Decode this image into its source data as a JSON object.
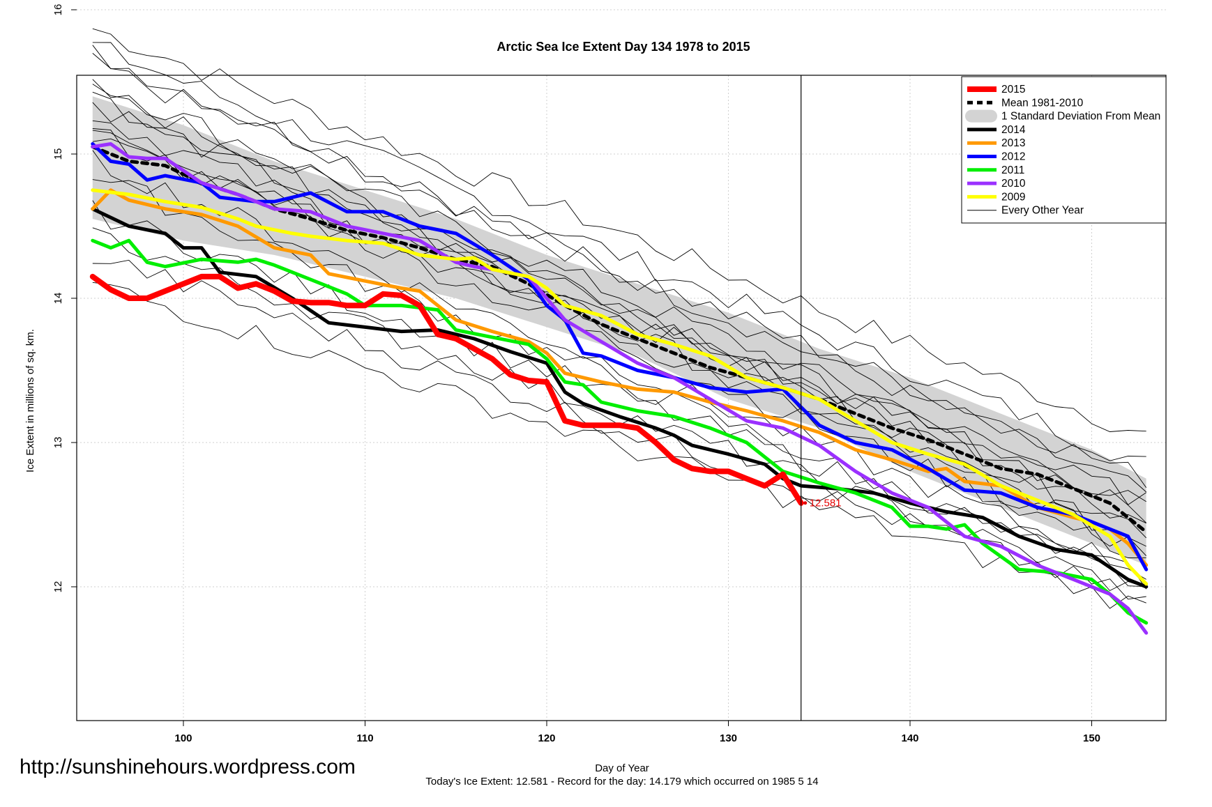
{
  "chart_data": {
    "type": "line",
    "title": "Arctic Sea Ice Extent Day 134 1978 to 2015",
    "xlabel": "Day of Year",
    "ylabel": "Ice Extent in millions of sq. km.",
    "xlim": [
      90,
      153
    ],
    "ylim": [
      11.55,
      16.0
    ],
    "xticks": [
      100,
      110,
      120,
      130,
      140,
      150
    ],
    "yticks": [
      12,
      13,
      14,
      15,
      16
    ],
    "grid": true,
    "legend_position": "top-right",
    "marker_day": 134,
    "annotation": {
      "x": 134,
      "y": 12.581,
      "text": "12.581",
      "color": "#e50000"
    },
    "footer": "Today's Ice Extent: 12.581  - Record for the day: 14.179 which occurred on 1985 5 14",
    "watermark": "http://sunshinehours.wordpress.com",
    "legend": [
      {
        "label": "2015",
        "color": "#ff0000",
        "style": "thick"
      },
      {
        "label": "Mean 1981-2010",
        "color": "#000000",
        "style": "dashed"
      },
      {
        "label": "1 Standard Deviation From Mean",
        "color": "#d3d3d3",
        "style": "band"
      },
      {
        "label": "2014",
        "color": "#000000",
        "style": "solid"
      },
      {
        "label": "2013",
        "color": "#ff9900",
        "style": "solid"
      },
      {
        "label": "2012",
        "color": "#0000ff",
        "style": "solid"
      },
      {
        "label": "2011",
        "color": "#00ee00",
        "style": "solid"
      },
      {
        "label": "2010",
        "color": "#9b30ff",
        "style": "solid"
      },
      {
        "label": "2009",
        "color": "#ffff00",
        "style": "solid"
      },
      {
        "label": "Every Other Year",
        "color": "#000000",
        "style": "thin"
      }
    ],
    "band": {
      "x": [
        95,
        100,
        105,
        110,
        115,
        120,
        125,
        130,
        135,
        140,
        145,
        150,
        153
      ],
      "upper": [
        15.4,
        15.2,
        14.95,
        14.75,
        14.55,
        14.3,
        14.1,
        13.9,
        13.65,
        13.45,
        13.2,
        12.95,
        12.75
      ],
      "lower": [
        14.55,
        14.4,
        14.3,
        14.15,
        14.0,
        13.8,
        13.6,
        13.3,
        13.1,
        12.8,
        12.55,
        12.3,
        12.15
      ]
    },
    "series": [
      {
        "name": "Mean 1981-2010",
        "color": "#000000",
        "width": 5,
        "dash": "8,7",
        "x": [
          95,
          97,
          99,
          101,
          103,
          105,
          107,
          109,
          111,
          113,
          115,
          117,
          119,
          121,
          123,
          125,
          127,
          129,
          131,
          133,
          135,
          137,
          139,
          141,
          143,
          145,
          147,
          149,
          151,
          153
        ],
        "y": [
          15.05,
          14.95,
          14.92,
          14.8,
          14.72,
          14.62,
          14.55,
          14.47,
          14.42,
          14.35,
          14.27,
          14.22,
          14.1,
          13.95,
          13.82,
          13.72,
          13.62,
          13.52,
          13.45,
          13.38,
          13.3,
          13.2,
          13.1,
          13.02,
          12.92,
          12.82,
          12.78,
          12.68,
          12.58,
          12.38
        ]
      },
      {
        "name": "2014",
        "color": "#000000",
        "width": 5,
        "x": [
          95,
          97,
          99,
          100,
          101,
          102,
          104,
          106,
          108,
          110,
          112,
          114,
          116,
          118,
          120,
          121,
          122,
          124,
          126,
          127,
          128,
          130,
          132,
          133,
          134,
          136,
          138,
          140,
          142,
          144,
          146,
          148,
          150,
          152,
          153
        ],
        "y": [
          14.62,
          14.5,
          14.45,
          14.35,
          14.35,
          14.18,
          14.15,
          14.0,
          13.83,
          13.8,
          13.77,
          13.78,
          13.72,
          13.63,
          13.55,
          13.35,
          13.27,
          13.18,
          13.1,
          13.05,
          12.98,
          12.92,
          12.85,
          12.75,
          12.7,
          12.68,
          12.65,
          12.58,
          12.52,
          12.48,
          12.35,
          12.26,
          12.22,
          12.05,
          12.0
        ]
      },
      {
        "name": "2013",
        "color": "#ff9900",
        "width": 5,
        "x": [
          95,
          96,
          97,
          99,
          101,
          103,
          105,
          107,
          108,
          110,
          112,
          113,
          115,
          117,
          119,
          120,
          121,
          123,
          125,
          127,
          129,
          131,
          133,
          135,
          137,
          139,
          141,
          142,
          143,
          145,
          147,
          149,
          150,
          151,
          152,
          153
        ],
        "y": [
          14.62,
          14.75,
          14.68,
          14.62,
          14.58,
          14.5,
          14.35,
          14.3,
          14.17,
          14.12,
          14.07,
          14.05,
          13.85,
          13.77,
          13.7,
          13.62,
          13.48,
          13.42,
          13.37,
          13.35,
          13.28,
          13.22,
          13.15,
          13.07,
          12.95,
          12.88,
          12.8,
          12.82,
          12.73,
          12.7,
          12.55,
          12.48,
          12.45,
          12.4,
          12.3,
          12.15
        ]
      },
      {
        "name": "2012",
        "color": "#0000ff",
        "width": 5,
        "x": [
          95,
          96,
          97,
          98,
          99,
          101,
          102,
          104,
          105,
          107,
          109,
          111,
          113,
          115,
          117,
          119,
          120,
          121,
          122,
          123,
          125,
          127,
          129,
          131,
          133,
          135,
          137,
          139,
          141,
          143,
          145,
          147,
          149,
          151,
          152,
          153
        ],
        "y": [
          15.07,
          14.95,
          14.93,
          14.82,
          14.85,
          14.8,
          14.7,
          14.67,
          14.67,
          14.73,
          14.6,
          14.6,
          14.5,
          14.45,
          14.3,
          14.13,
          13.95,
          13.85,
          13.62,
          13.6,
          13.5,
          13.45,
          13.38,
          13.35,
          13.37,
          13.12,
          13.0,
          12.95,
          12.82,
          12.67,
          12.65,
          12.55,
          12.5,
          12.4,
          12.35,
          12.12
        ]
      },
      {
        "name": "2011",
        "color": "#00ee00",
        "width": 5,
        "x": [
          95,
          96,
          97,
          98,
          99,
          101,
          103,
          104,
          105,
          107,
          109,
          110,
          112,
          114,
          115,
          117,
          119,
          120,
          121,
          122,
          123,
          125,
          127,
          129,
          131,
          133,
          135,
          137,
          139,
          140,
          141,
          142,
          143,
          144,
          146,
          148,
          150,
          151,
          152,
          153
        ],
        "y": [
          14.4,
          14.35,
          14.4,
          14.25,
          14.22,
          14.27,
          14.25,
          14.27,
          14.23,
          14.13,
          14.03,
          13.95,
          13.95,
          13.92,
          13.78,
          13.73,
          13.68,
          13.58,
          13.42,
          13.4,
          13.28,
          13.22,
          13.18,
          13.1,
          13.0,
          12.8,
          12.72,
          12.65,
          12.55,
          12.42,
          12.42,
          12.4,
          12.43,
          12.3,
          12.12,
          12.1,
          12.05,
          11.95,
          11.82,
          11.75
        ]
      },
      {
        "name": "2010",
        "color": "#9b30ff",
        "width": 5,
        "x": [
          95,
          96,
          97,
          98,
          99,
          101,
          103,
          105,
          107,
          109,
          111,
          113,
          115,
          116,
          117,
          119,
          120,
          121,
          123,
          125,
          127,
          129,
          131,
          133,
          135,
          137,
          139,
          141,
          143,
          145,
          147,
          149,
          151,
          152,
          153
        ],
        "y": [
          15.05,
          15.07,
          14.98,
          14.97,
          14.97,
          14.8,
          14.72,
          14.62,
          14.6,
          14.5,
          14.45,
          14.4,
          14.25,
          14.22,
          14.2,
          14.15,
          14.0,
          13.85,
          13.7,
          13.55,
          13.45,
          13.3,
          13.15,
          13.1,
          12.98,
          12.8,
          12.65,
          12.55,
          12.35,
          12.28,
          12.15,
          12.05,
          11.95,
          11.85,
          11.68
        ]
      },
      {
        "name": "2009",
        "color": "#ffff00",
        "width": 5,
        "x": [
          95,
          97,
          99,
          101,
          103,
          104,
          106,
          107,
          109,
          111,
          113,
          115,
          116,
          117,
          119,
          120,
          121,
          123,
          125,
          127,
          129,
          131,
          133,
          135,
          137,
          139,
          141,
          143,
          145,
          147,
          149,
          151,
          152,
          153
        ],
        "y": [
          14.75,
          14.72,
          14.67,
          14.63,
          14.55,
          14.5,
          14.45,
          14.43,
          14.4,
          14.38,
          14.3,
          14.27,
          14.28,
          14.2,
          14.15,
          14.07,
          13.95,
          13.88,
          13.75,
          13.68,
          13.6,
          13.45,
          13.38,
          13.3,
          13.15,
          13.0,
          12.92,
          12.85,
          12.7,
          12.6,
          12.5,
          12.35,
          12.15,
          12.02
        ]
      },
      {
        "name": "2015",
        "color": "#ff0000",
        "width": 8,
        "x": [
          95,
          96,
          97,
          98,
          99,
          101,
          102,
          103,
          104,
          105,
          106,
          107,
          108,
          109,
          110,
          111,
          112,
          113,
          114,
          115,
          116,
          117,
          118,
          119,
          120,
          121,
          122,
          123,
          124,
          125,
          126,
          127,
          128,
          129,
          130,
          131,
          132,
          133,
          134
        ],
        "y": [
          14.15,
          14.06,
          14.0,
          14.0,
          14.05,
          14.15,
          14.15,
          14.07,
          14.1,
          14.05,
          13.98,
          13.97,
          13.97,
          13.95,
          13.95,
          14.03,
          14.02,
          13.95,
          13.75,
          13.72,
          13.65,
          13.58,
          13.47,
          13.43,
          13.42,
          13.15,
          13.12,
          13.12,
          13.12,
          13.1,
          13.0,
          12.88,
          12.82,
          12.8,
          12.8,
          12.75,
          12.7,
          12.78,
          12.58
        ]
      }
    ],
    "thin_years": [
      {
        "start": 15.87,
        "end": 13.05
      },
      {
        "start": 15.75,
        "end": 12.85
      },
      {
        "start": 15.7,
        "end": 12.65
      },
      {
        "start": 15.62,
        "end": 12.75
      },
      {
        "start": 15.5,
        "end": 12.55
      },
      {
        "start": 15.45,
        "end": 12.5
      },
      {
        "start": 15.4,
        "end": 12.45
      },
      {
        "start": 15.35,
        "end": 12.4
      },
      {
        "start": 15.27,
        "end": 12.3
      },
      {
        "start": 15.22,
        "end": 12.25
      },
      {
        "start": 15.15,
        "end": 12.2
      },
      {
        "start": 15.1,
        "end": 12.6
      },
      {
        "start": 14.95,
        "end": 12.1
      },
      {
        "start": 14.85,
        "end": 12.0
      },
      {
        "start": 14.6,
        "end": 12.05
      },
      {
        "start": 14.45,
        "end": 11.95
      },
      {
        "start": 14.3,
        "end": 11.9
      },
      {
        "start": 14.1,
        "end": 11.85
      }
    ]
  }
}
